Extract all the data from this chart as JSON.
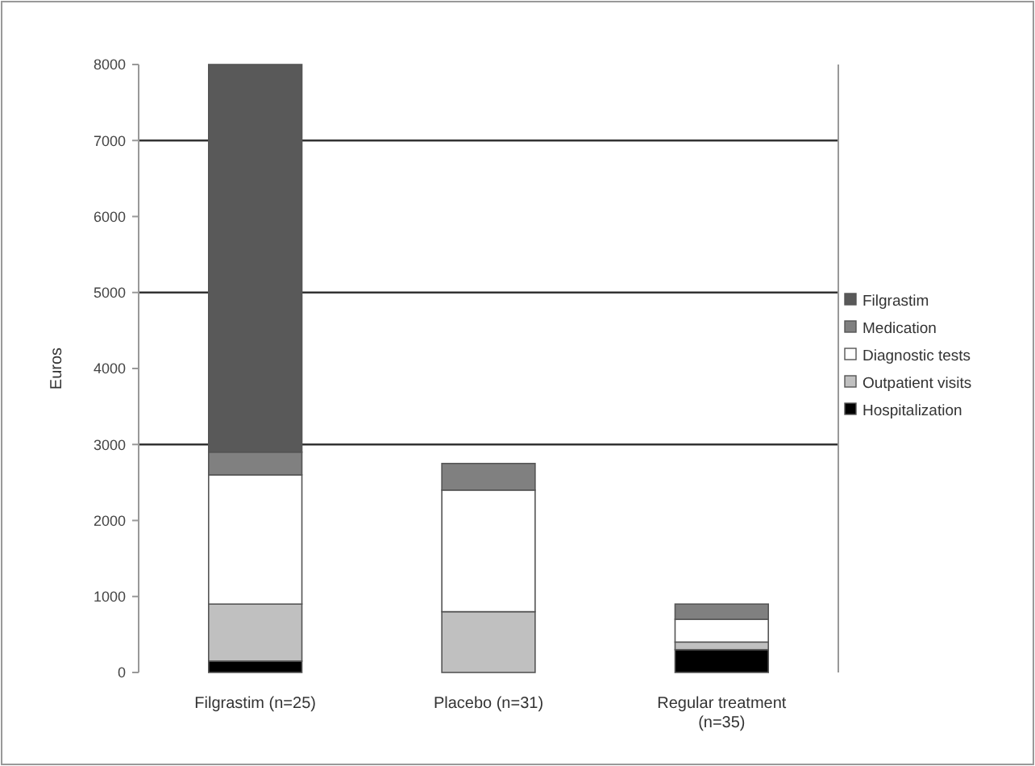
{
  "chart_data": {
    "type": "bar",
    "stacked": true,
    "ylabel": "Euros",
    "categories": [
      "Filgrastim (n=25)",
      "Placebo (n=31)",
      "Regular treatment (n=35)"
    ],
    "series": [
      {
        "name": "Hospitalization",
        "color": "#000000",
        "values": [
          150,
          0,
          300
        ]
      },
      {
        "name": "Outpatient visits",
        "color": "#c0c0c0",
        "values": [
          750,
          800,
          100
        ]
      },
      {
        "name": "Diagnostic tests",
        "color": "#ffffff",
        "values": [
          1700,
          1600,
          300
        ]
      },
      {
        "name": "Medication",
        "color": "#808080",
        "values": [
          300,
          350,
          200
        ]
      },
      {
        "name": "Filgrastim",
        "color": "#595959",
        "values": [
          5100,
          0,
          0
        ]
      }
    ],
    "ylim": [
      0,
      8000
    ],
    "yticks": [
      0,
      1000,
      2000,
      3000,
      4000,
      5000,
      6000,
      7000,
      8000
    ],
    "ref_lines": [
      {
        "axis": "y",
        "value": 3000
      },
      {
        "axis": "y",
        "value": 5000
      },
      {
        "axis": "y",
        "value": 7000
      }
    ],
    "legend": "right"
  }
}
